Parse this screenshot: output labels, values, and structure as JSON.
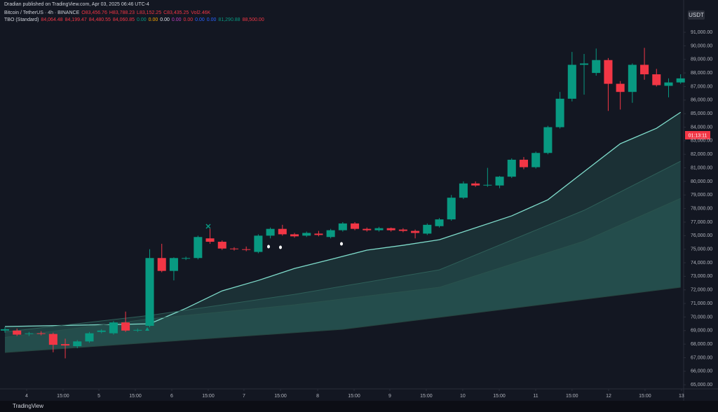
{
  "header": {
    "published": "Dradian published on TradingView.com, Apr 03, 2025 06:46 UTC-4",
    "symbol": "Bitcoin / TetherUS · 4h · BINANCE",
    "ohlc": [
      "O83,456.76",
      "H83,788.23",
      "L83,152.25",
      "C83,435.25",
      "Vol2.46K"
    ],
    "indicator": "TBO (Standard)",
    "indicator_values": [
      {
        "text": "84,064.48",
        "color": "#f23645"
      },
      {
        "text": "84,199.47",
        "color": "#f23645"
      },
      {
        "text": "84,480.55",
        "color": "#f23645"
      },
      {
        "text": "84,060.85",
        "color": "#f23645"
      },
      {
        "text": "0.00",
        "color": "#089981"
      },
      {
        "text": "0.00",
        "color": "#f7a600"
      },
      {
        "text": "0.00",
        "color": "#e0e3eb"
      },
      {
        "text": "0.00",
        "color": "#c040c0"
      },
      {
        "text": "0.00",
        "color": "#f23645"
      },
      {
        "text": "0.00",
        "color": "#2962ff"
      },
      {
        "text": "0.00",
        "color": "#2962ff"
      },
      {
        "text": "81,290.88",
        "color": "#089981"
      },
      {
        "text": "88,500.00",
        "color": "#f23645"
      }
    ]
  },
  "currency": "USDT",
  "countdown": "01:13:11",
  "brand": "TradingView",
  "chart_data": {
    "type": "candlestick",
    "up_color": "#089981",
    "down_color": "#f23645",
    "x": [
      0,
      1,
      2,
      3,
      4,
      5,
      6,
      7,
      8,
      9,
      10,
      11,
      12,
      13,
      14,
      15,
      16,
      17,
      18,
      19,
      20,
      21,
      22,
      23,
      24,
      25,
      26,
      27,
      28,
      29,
      30,
      31,
      32,
      33,
      34,
      35,
      36,
      37,
      38,
      39,
      40,
      41,
      42,
      43,
      44,
      45,
      46,
      47,
      48,
      49,
      50,
      51,
      52,
      53,
      54,
      55,
      56
    ],
    "open": [
      69000,
      69000,
      68750,
      68800,
      68750,
      68000,
      67850,
      68200,
      68900,
      68800,
      69600,
      69000,
      69350,
      74350,
      73400,
      74300,
      74350,
      75800,
      75550,
      75050,
      75000,
      74800,
      76000,
      76500,
      76100,
      76000,
      76150,
      75900,
      76400,
      76900,
      76500,
      76400,
      76550,
      76450,
      76350,
      76150,
      76700,
      77200,
      78800,
      79850,
      79700,
      79700,
      80350,
      81600,
      81050,
      82100,
      84000,
      86100,
      88600,
      88000,
      88950,
      87200,
      86600,
      88600,
      87900,
      87050,
      87300
    ],
    "high": [
      69250,
      69150,
      68900,
      68950,
      68850,
      68400,
      68300,
      68900,
      69100,
      69700,
      70400,
      69150,
      75000,
      75400,
      74400,
      74450,
      76000,
      76500,
      75650,
      75150,
      75200,
      76100,
      76600,
      76800,
      76200,
      76300,
      76350,
      76500,
      77000,
      77000,
      76600,
      76650,
      76600,
      76550,
      76450,
      76900,
      77300,
      79000,
      80000,
      80000,
      81000,
      80400,
      81700,
      81800,
      82200,
      84100,
      86600,
      89550,
      89400,
      89800,
      89100,
      87400,
      88700,
      89850,
      88300,
      87600,
      87900
    ],
    "low": [
      68850,
      68600,
      68600,
      68650,
      67400,
      66950,
      67700,
      68100,
      68800,
      68700,
      68900,
      68900,
      69250,
      73300,
      72700,
      74200,
      74250,
      75400,
      74950,
      74900,
      74850,
      74700,
      75800,
      76000,
      75850,
      75900,
      75950,
      75800,
      76300,
      76400,
      76300,
      76300,
      76300,
      76250,
      75800,
      76050,
      76600,
      77100,
      78700,
      79600,
      79600,
      79500,
      80250,
      80900,
      80950,
      82000,
      83900,
      85900,
      86400,
      87800,
      85200,
      85300,
      85800,
      87500,
      87000,
      86200,
      87200
    ],
    "close": [
      69100,
      68700,
      68800,
      68750,
      67950,
      67900,
      68200,
      68800,
      69000,
      69600,
      69000,
      69050,
      74350,
      73400,
      74350,
      74350,
      75900,
      75550,
      75050,
      75000,
      74950,
      76000,
      76500,
      76100,
      75950,
      76200,
      76050,
      76400,
      76900,
      76500,
      76400,
      76550,
      76400,
      76350,
      76200,
      76800,
      77200,
      78800,
      79850,
      79700,
      79750,
      80350,
      81600,
      81050,
      82100,
      84000,
      86100,
      88600,
      88700,
      88950,
      87200,
      86600,
      88600,
      87900,
      87100,
      87300,
      87600
    ],
    "lines": [
      {
        "color": "#7fdccb",
        "x": [
          0,
          12,
          15,
          18,
          21,
          24,
          27,
          30,
          33,
          36,
          39,
          42,
          45,
          48,
          51,
          54,
          56
        ],
        "values": [
          69300,
          69500,
          70640,
          71930,
          72700,
          73580,
          74250,
          74930,
          75290,
          75700,
          76580,
          77460,
          78650,
          80720,
          82780,
          83920,
          85100
        ]
      },
      {
        "color": "#2f5f59",
        "x": [
          0,
          12,
          24,
          36,
          48,
          56
        ],
        "values": [
          68900,
          70120,
          71670,
          73480,
          77870,
          81490
        ]
      },
      {
        "color": "#2a524d",
        "x": [
          0,
          12,
          24,
          36,
          48,
          56
        ],
        "values": [
          68500,
          69860,
          70900,
          72190,
          75600,
          78750
        ]
      },
      {
        "color": "#26443f",
        "x": [
          0,
          28,
          56
        ],
        "values": [
          67380,
          69090,
          72190
        ]
      }
    ],
    "xlim": [
      -0.407,
      56.25
    ],
    "ylim": [
      64700,
      93380
    ],
    "xticks": [
      {
        "value": 1.8,
        "label": "4"
      },
      {
        "value": 4.82,
        "label": "15:00"
      },
      {
        "value": 7.79,
        "label": "5"
      },
      {
        "value": 10.81,
        "label": "15:00"
      },
      {
        "value": 13.83,
        "label": "6"
      },
      {
        "value": 16.85,
        "label": "15:00"
      },
      {
        "value": 19.81,
        "label": "7"
      },
      {
        "value": 22.84,
        "label": "15:00"
      },
      {
        "value": 25.92,
        "label": "8"
      },
      {
        "value": 28.94,
        "label": "15:00"
      },
      {
        "value": 31.9,
        "label": "9"
      },
      {
        "value": 34.92,
        "label": "15:00"
      },
      {
        "value": 37.94,
        "label": "10"
      },
      {
        "value": 40.97,
        "label": "15:00"
      },
      {
        "value": 43.99,
        "label": "11"
      },
      {
        "value": 47.0,
        "label": "15:00"
      },
      {
        "value": 50.03,
        "label": "12"
      },
      {
        "value": 53.05,
        "label": "15:00"
      },
      {
        "value": 56.07,
        "label": "13"
      }
    ],
    "yticks": [
      {
        "value": 65000,
        "label": "65,000.00"
      },
      {
        "value": 66000,
        "label": "66,000.00"
      },
      {
        "value": 67000,
        "label": "67,000.00"
      },
      {
        "value": 68000,
        "label": "68,000.00"
      },
      {
        "value": 69000,
        "label": "69,000.00"
      },
      {
        "value": 70000,
        "label": "70,000.00"
      },
      {
        "value": 71000,
        "label": "71,000.00"
      },
      {
        "value": 72000,
        "label": "72,000.00"
      },
      {
        "value": 73000,
        "label": "73,000.00"
      },
      {
        "value": 74000,
        "label": "74,000.00"
      },
      {
        "value": 75000,
        "label": "75,000.00"
      },
      {
        "value": 76000,
        "label": "76,000.00"
      },
      {
        "value": 77000,
        "label": "77,000.00"
      },
      {
        "value": 78000,
        "label": "78,000.00"
      },
      {
        "value": 79000,
        "label": "79,000.00"
      },
      {
        "value": 80000,
        "label": "80,000.00"
      },
      {
        "value": 81000,
        "label": "81,000.00"
      },
      {
        "value": 82000,
        "label": "82,000.00"
      },
      {
        "value": 83000,
        "label": "83,000.00"
      },
      {
        "value": 84000,
        "label": "84,000.00"
      },
      {
        "value": 85000,
        "label": "85,000.00"
      },
      {
        "value": 86000,
        "label": "86,000.00"
      },
      {
        "value": 87000,
        "label": "87,000.00"
      },
      {
        "value": 88000,
        "label": "88,000.00"
      },
      {
        "value": 89000,
        "label": "89,000.00"
      },
      {
        "value": 90000,
        "label": "90,000.00"
      },
      {
        "value": 91000,
        "label": "91,000.00"
      }
    ]
  }
}
